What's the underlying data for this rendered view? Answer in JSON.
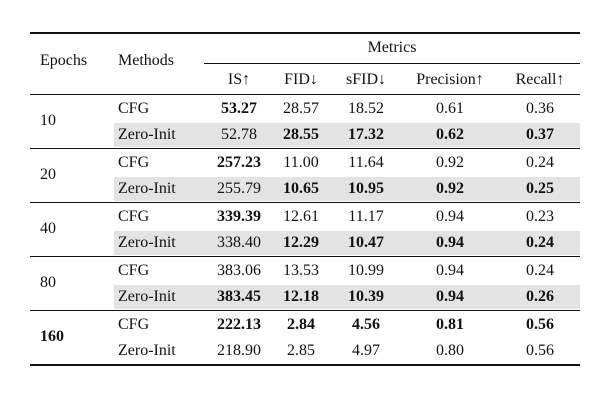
{
  "header": {
    "epochs": "Epochs",
    "methods": "Methods",
    "metrics": "Metrics",
    "columns": [
      "IS↑",
      "FID↓",
      "sFID↓",
      "Precision↑",
      "Recall↑"
    ]
  },
  "groups": [
    {
      "epoch": "10",
      "epoch_bold": false,
      "rows": [
        {
          "method": "CFG",
          "shaded": false,
          "values": [
            "53.27",
            "28.57",
            "18.52",
            "0.61",
            "0.36"
          ],
          "bold": [
            true,
            false,
            false,
            false,
            false
          ]
        },
        {
          "method": "Zero-Init",
          "shaded": true,
          "values": [
            "52.78",
            "28.55",
            "17.32",
            "0.62",
            "0.37"
          ],
          "bold": [
            false,
            true,
            true,
            true,
            true
          ]
        }
      ]
    },
    {
      "epoch": "20",
      "epoch_bold": false,
      "rows": [
        {
          "method": "CFG",
          "shaded": false,
          "values": [
            "257.23",
            "11.00",
            "11.64",
            "0.92",
            "0.24"
          ],
          "bold": [
            true,
            false,
            false,
            false,
            false
          ]
        },
        {
          "method": "Zero-Init",
          "shaded": true,
          "values": [
            "255.79",
            "10.65",
            "10.95",
            "0.92",
            "0.25"
          ],
          "bold": [
            false,
            true,
            true,
            true,
            true
          ]
        }
      ]
    },
    {
      "epoch": "40",
      "epoch_bold": false,
      "rows": [
        {
          "method": "CFG",
          "shaded": false,
          "values": [
            "339.39",
            "12.61",
            "11.17",
            "0.94",
            "0.23"
          ],
          "bold": [
            true,
            false,
            false,
            false,
            false
          ]
        },
        {
          "method": "Zero-Init",
          "shaded": true,
          "values": [
            "338.40",
            "12.29",
            "10.47",
            "0.94",
            "0.24"
          ],
          "bold": [
            false,
            true,
            true,
            true,
            true
          ]
        }
      ]
    },
    {
      "epoch": "80",
      "epoch_bold": false,
      "rows": [
        {
          "method": "CFG",
          "shaded": false,
          "values": [
            "383.06",
            "13.53",
            "10.99",
            "0.94",
            "0.24"
          ],
          "bold": [
            false,
            false,
            false,
            false,
            false
          ]
        },
        {
          "method": "Zero-Init",
          "shaded": true,
          "values": [
            "383.45",
            "12.18",
            "10.39",
            "0.94",
            "0.26"
          ],
          "bold": [
            true,
            true,
            true,
            true,
            true
          ]
        }
      ]
    },
    {
      "epoch": "160",
      "epoch_bold": true,
      "rows": [
        {
          "method": "CFG",
          "shaded": false,
          "values": [
            "222.13",
            "2.84",
            "4.56",
            "0.81",
            "0.56"
          ],
          "bold": [
            true,
            true,
            true,
            true,
            true
          ]
        },
        {
          "method": "Zero-Init",
          "shaded": false,
          "values": [
            "218.90",
            "2.85",
            "4.97",
            "0.80",
            "0.56"
          ],
          "bold": [
            false,
            false,
            false,
            false,
            false
          ]
        }
      ]
    }
  ]
}
